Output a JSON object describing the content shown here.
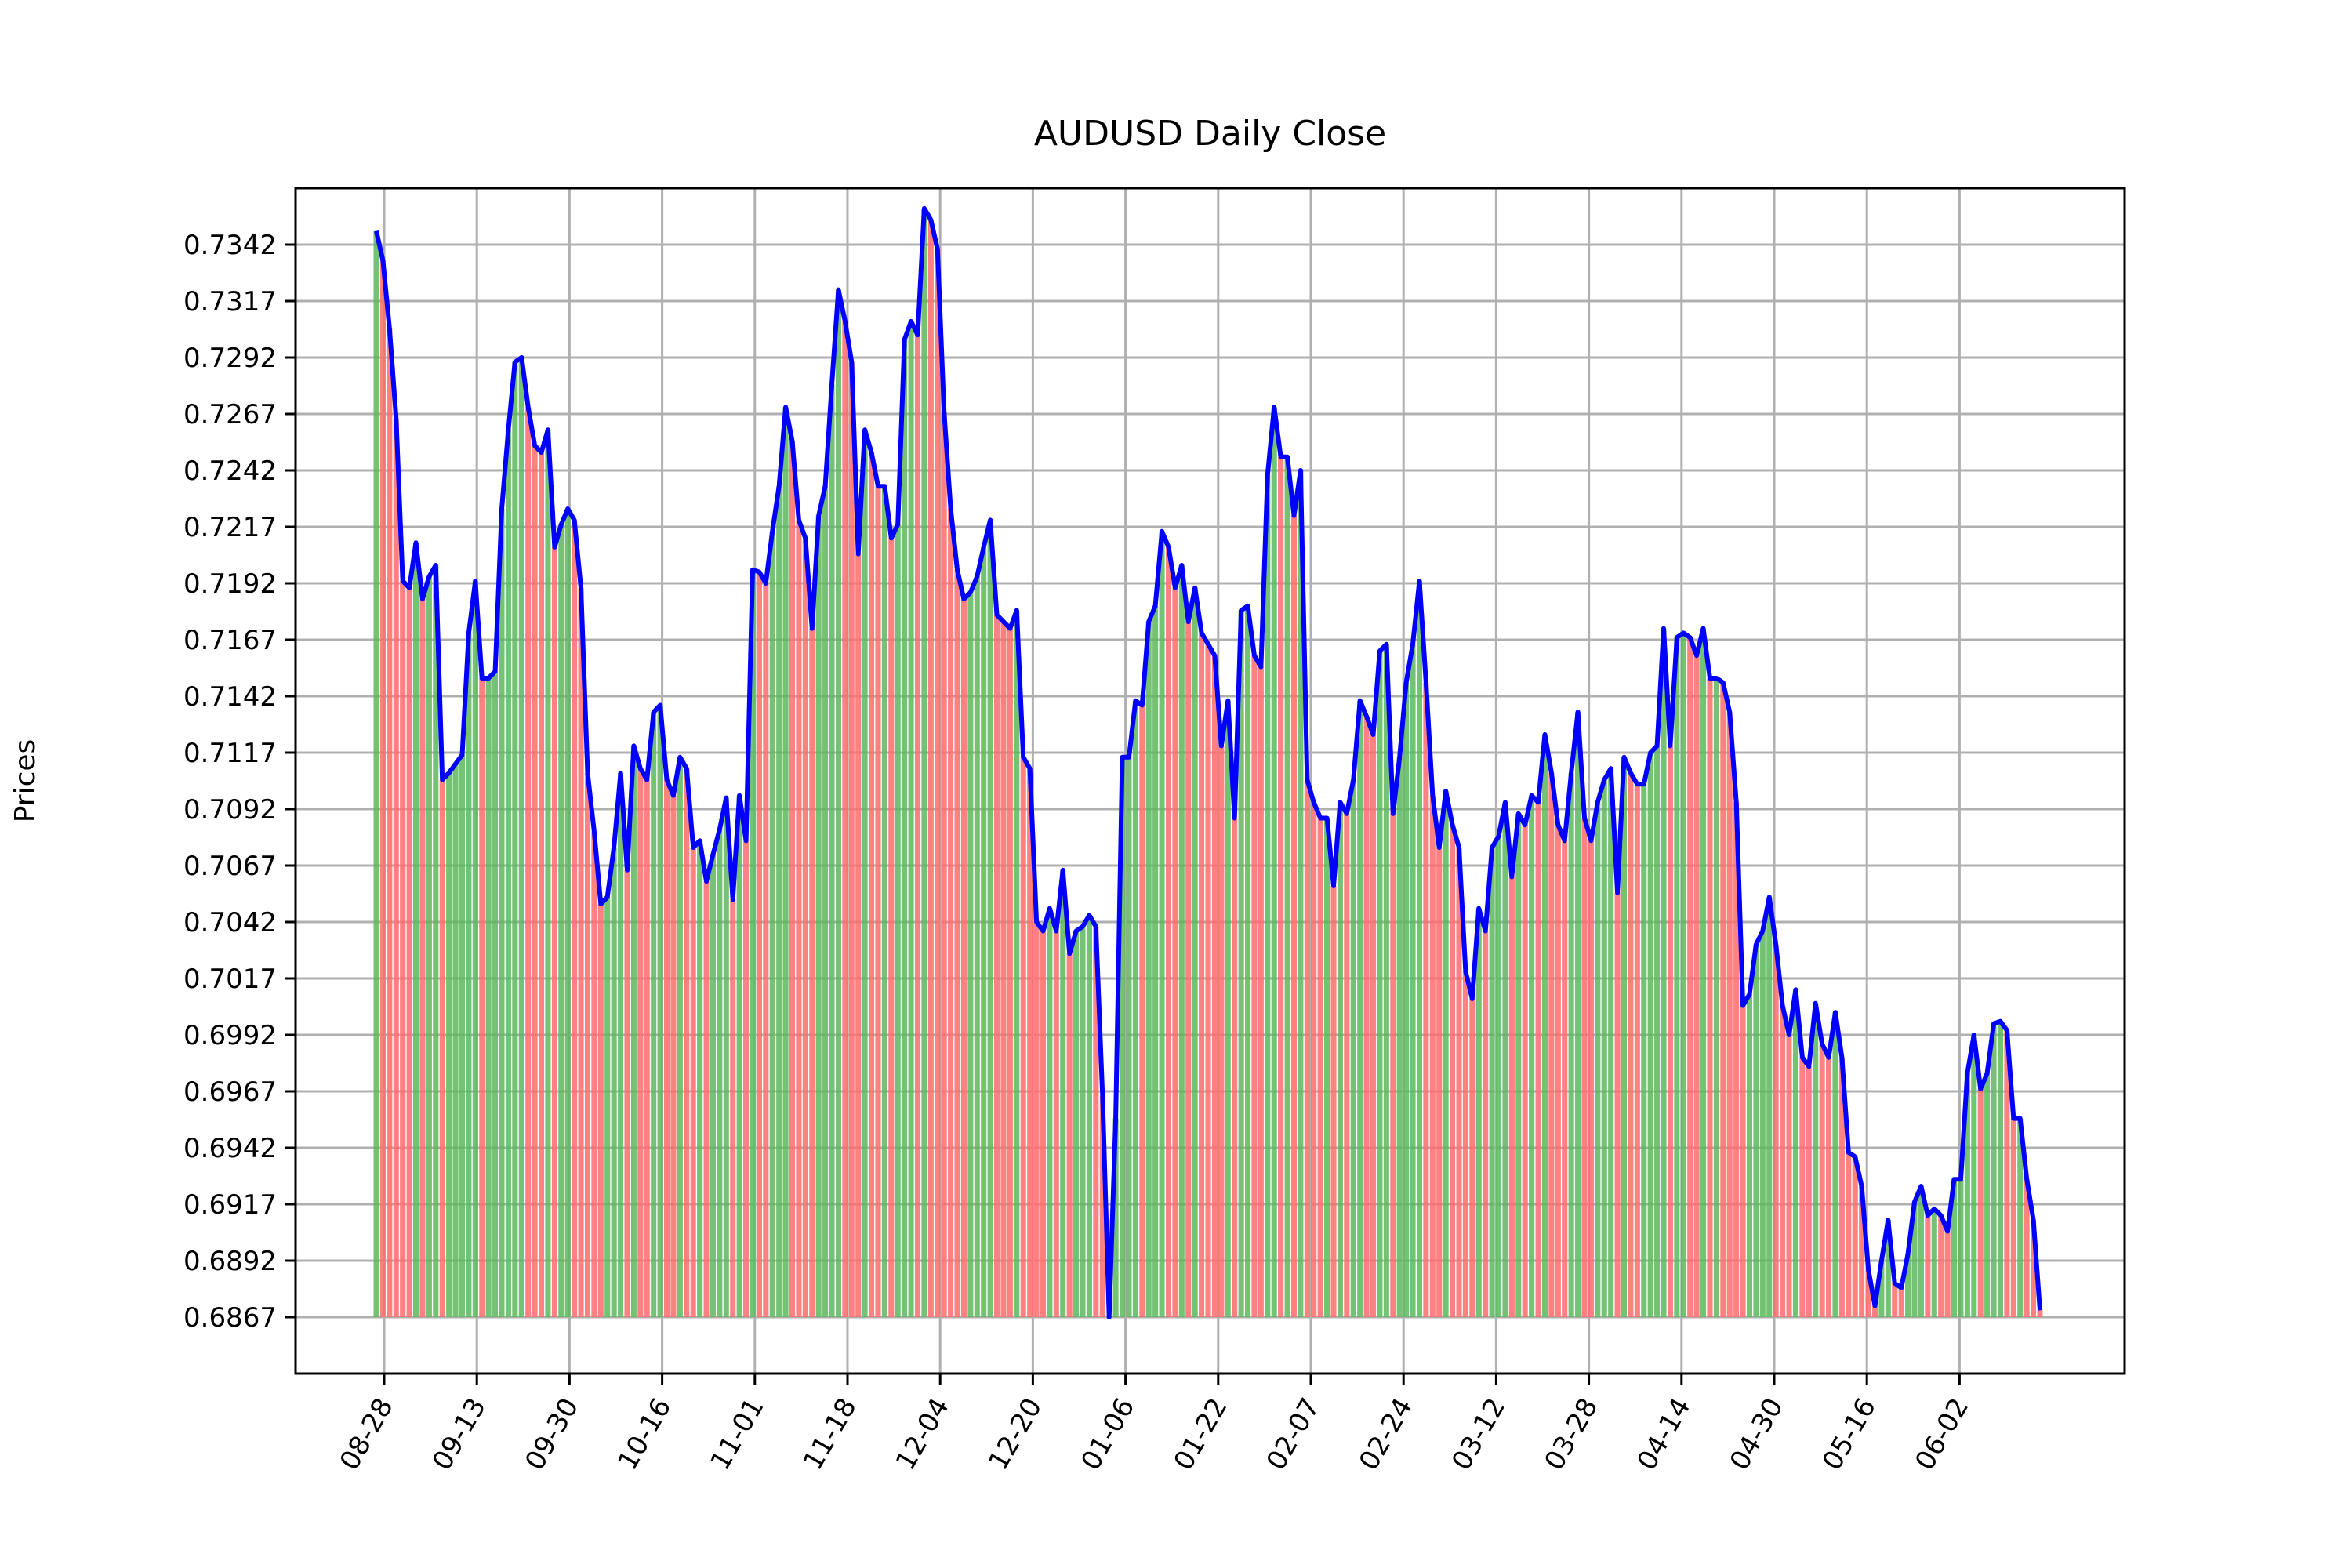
{
  "chart_data": {
    "type": "line",
    "title": "AUDUSD Daily Close",
    "xlabel": "",
    "ylabel": "Prices",
    "ylim": [
      0.6842,
      0.7367
    ],
    "yticks": [
      "0.6867",
      "0.6892",
      "0.6917",
      "0.6942",
      "0.6967",
      "0.6992",
      "0.7017",
      "0.7042",
      "0.7067",
      "0.7092",
      "0.7117",
      "0.7142",
      "0.7167",
      "0.7192",
      "0.7217",
      "0.7242",
      "0.7267",
      "0.7292",
      "0.7317",
      "0.7342"
    ],
    "xticks": [
      "08-28",
      "09-13",
      "09-30",
      "10-16",
      "11-01",
      "11-18",
      "12-04",
      "12-20",
      "01-06",
      "01-22",
      "02-07",
      "02-24",
      "03-12",
      "03-28",
      "04-14",
      "04-30",
      "05-16",
      "06-02"
    ],
    "grid": true,
    "bar_baseline": 0.6867,
    "bar_colors": {
      "up": "#5cb85c",
      "down": "#ff6b6b"
    },
    "line_color": "#0000ff",
    "series": [
      {
        "values": [
          0.7348,
          0.7335,
          0.7305,
          0.7265,
          0.7193,
          0.719,
          0.721,
          0.7185,
          0.7195,
          0.72,
          0.7105,
          0.7108,
          0.7112,
          0.7116,
          0.717,
          0.7193,
          0.715,
          0.715,
          0.7153,
          0.7225,
          0.726,
          0.729,
          0.7292,
          0.727,
          0.7253,
          0.725,
          0.726,
          0.7208,
          0.7218,
          0.7225,
          0.722,
          0.719,
          0.7108,
          0.7082,
          0.705,
          0.7053,
          0.7075,
          0.7108,
          0.7065,
          0.712,
          0.711,
          0.7105,
          0.7135,
          0.7138,
          0.7105,
          0.7098,
          0.7115,
          0.711,
          0.7075,
          0.7078,
          0.706,
          0.7072,
          0.7083,
          0.7097,
          0.7052,
          0.7098,
          0.7078,
          0.7198,
          0.7197,
          0.7192,
          0.7215,
          0.7235,
          0.727,
          0.7255,
          0.722,
          0.7212,
          0.7172,
          0.7222,
          0.7235,
          0.728,
          0.7322,
          0.7308,
          0.729,
          0.7205,
          0.726,
          0.725,
          0.7235,
          0.7235,
          0.7212,
          0.7218,
          0.73,
          0.7308,
          0.7302,
          0.7358,
          0.7353,
          0.734,
          0.7268,
          0.7225,
          0.7198,
          0.7185,
          0.7188,
          0.7195,
          0.7208,
          0.722,
          0.7178,
          0.7175,
          0.7172,
          0.718,
          0.7115,
          0.711,
          0.7042,
          0.7038,
          0.7048,
          0.7038,
          0.7065,
          0.7028,
          0.7038,
          0.704,
          0.7045,
          0.704,
          0.6965,
          0.6867,
          0.6955,
          0.7115,
          0.7115,
          0.714,
          0.7138,
          0.7175,
          0.7182,
          0.7215,
          0.7208,
          0.719,
          0.72,
          0.7175,
          0.719,
          0.717,
          0.7165,
          0.716,
          0.712,
          0.714,
          0.7088,
          0.718,
          0.7182,
          0.716,
          0.7155,
          0.724,
          0.727,
          0.7248,
          0.7248,
          0.7222,
          0.7242,
          0.7105,
          0.7095,
          0.7088,
          0.7088,
          0.7058,
          0.7095,
          0.709,
          0.7105,
          0.714,
          0.7133,
          0.7125,
          0.7162,
          0.7165,
          0.709,
          0.7115,
          0.7148,
          0.7165,
          0.7193,
          0.7148,
          0.7098,
          0.7075,
          0.71,
          0.7085,
          0.7075,
          0.702,
          0.7008,
          0.7048,
          0.7038,
          0.7075,
          0.708,
          0.7095,
          0.7062,
          0.709,
          0.7085,
          0.7098,
          0.7095,
          0.7125,
          0.7108,
          0.7085,
          0.7078,
          0.7108,
          0.7135,
          0.7088,
          0.7078,
          0.7095,
          0.7105,
          0.711,
          0.7055,
          0.7115,
          0.7108,
          0.7103,
          0.7103,
          0.7117,
          0.712,
          0.7172,
          0.712,
          0.7168,
          0.717,
          0.7168,
          0.716,
          0.7172,
          0.715,
          0.715,
          0.7148,
          0.7135,
          0.7095,
          0.7005,
          0.701,
          0.7032,
          0.7038,
          0.7053,
          0.7032,
          0.7005,
          0.6992,
          0.7012,
          0.6982,
          0.6978,
          0.7006,
          0.6988,
          0.6982,
          0.7002,
          0.6982,
          0.694,
          0.6938,
          0.6925,
          0.6888,
          0.6872,
          0.6892,
          0.691,
          0.6882,
          0.688,
          0.6895,
          0.6918,
          0.6925,
          0.6912,
          0.6915,
          0.6912,
          0.6905,
          0.6928,
          0.6928,
          0.6975,
          0.6992,
          0.6968,
          0.6975,
          0.6997,
          0.6998,
          0.6994,
          0.6955,
          0.6955,
          0.6928,
          0.691,
          0.687
        ]
      }
    ]
  }
}
